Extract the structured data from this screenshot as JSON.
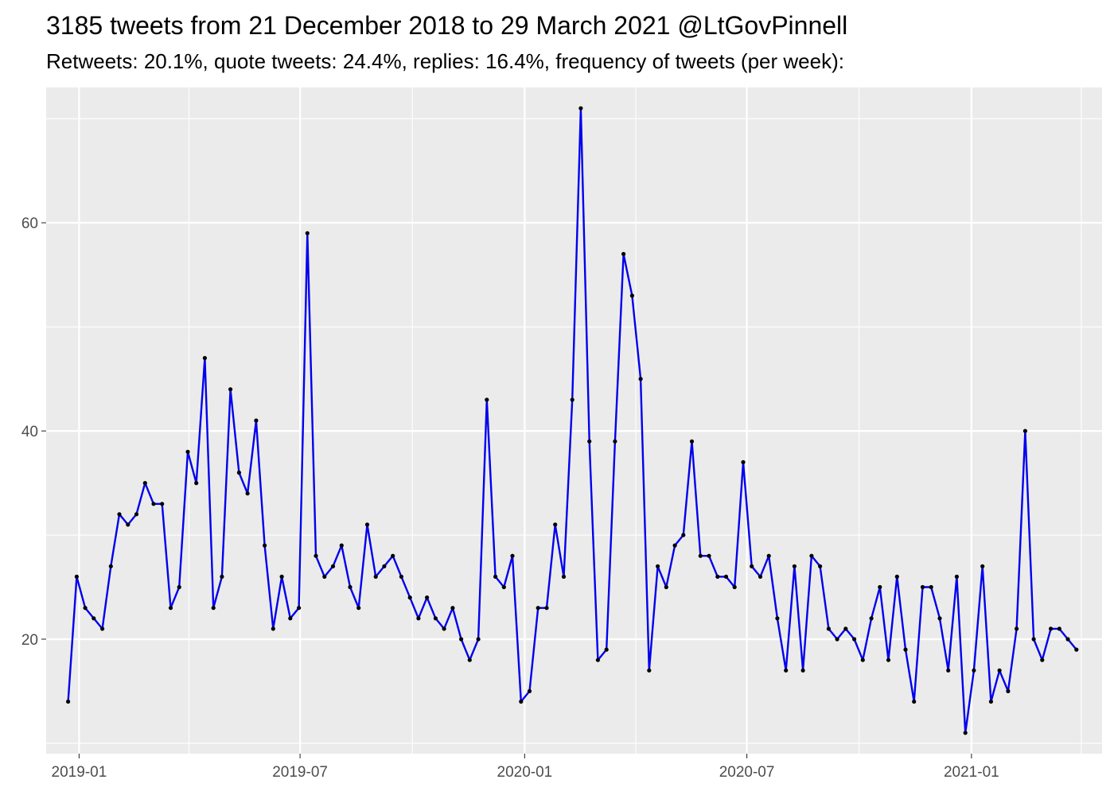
{
  "chart_data": {
    "type": "line",
    "title": "3185 tweets from 21 December 2018 to 29 March 2021 @LtGovPinnell",
    "subtitle": "Retweets: 20.1%, quote tweets: 24.4%, replies: 16.4%, frequency of tweets (per week):",
    "xlabel": "",
    "ylabel": "",
    "x_start": "2018-12-23",
    "x_step_days": 7,
    "xlim": [
      "2018-12-05",
      "2021-04-18"
    ],
    "ylim": [
      9,
      73
    ],
    "x_ticks": [
      {
        "date": "2019-01-01",
        "label": "2019-01"
      },
      {
        "date": "2019-07-01",
        "label": "2019-07"
      },
      {
        "date": "2020-01-01",
        "label": "2020-01"
      },
      {
        "date": "2020-07-01",
        "label": "2020-07"
      },
      {
        "date": "2021-01-01",
        "label": "2021-01"
      }
    ],
    "x_minor_ticks": [
      "2019-04-01",
      "2019-10-01",
      "2020-04-01",
      "2020-10-01",
      "2021-04-01",
      "2018-10-01"
    ],
    "y_ticks": [
      20,
      40,
      60
    ],
    "y_minor_ticks": [
      10,
      30,
      50,
      70
    ],
    "grid": true,
    "line_color": "#0000ee",
    "point_color": "#000000",
    "panel_color": "#ebebeb",
    "series": [
      {
        "values": [
          14,
          26,
          23,
          22,
          21,
          27,
          32,
          31,
          32,
          35,
          33,
          33,
          23,
          25,
          38,
          35,
          47,
          23,
          26,
          44,
          36,
          34,
          41,
          29,
          21,
          26,
          22,
          23,
          59,
          28,
          26,
          27,
          29,
          25,
          23,
          31,
          26,
          27,
          28,
          26,
          24,
          22,
          24,
          22,
          21,
          23,
          20,
          18,
          20,
          43,
          26,
          25,
          28,
          14,
          15,
          23,
          23,
          31,
          26,
          43,
          71,
          39,
          18,
          19,
          39,
          57,
          53,
          45,
          17,
          27,
          25,
          29,
          30,
          39,
          28,
          28,
          26,
          26,
          25,
          37,
          27,
          26,
          28,
          22,
          17,
          27,
          17,
          28,
          27,
          21,
          20,
          21,
          20,
          18,
          22,
          25,
          18,
          26,
          19,
          14,
          25,
          25,
          22,
          17,
          26,
          11,
          17,
          27,
          14,
          17,
          15,
          21,
          40,
          20,
          18,
          21,
          21,
          20,
          19
        ]
      }
    ]
  }
}
